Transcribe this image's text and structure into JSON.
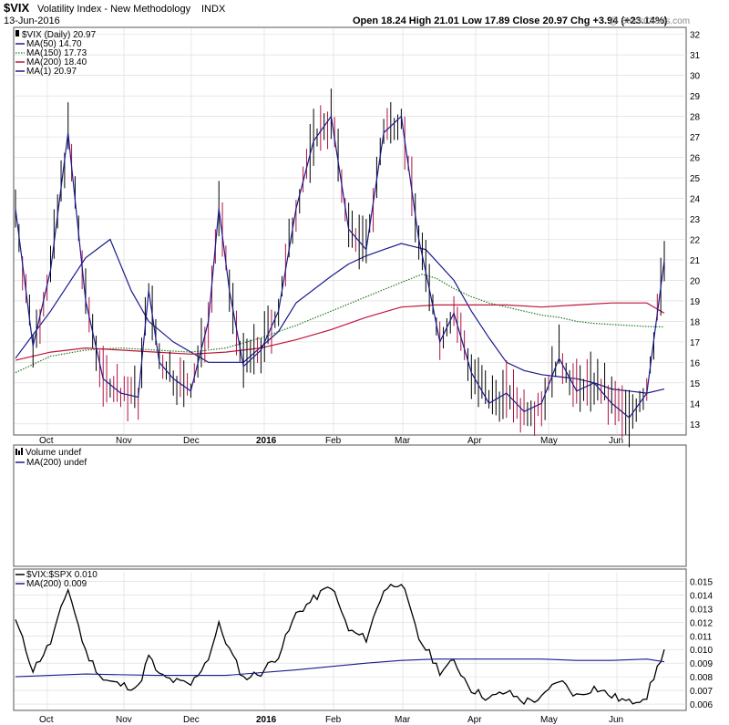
{
  "header": {
    "symbol": "$VIX",
    "name": "Volatility Index - New Methodology",
    "exchange": "INDX",
    "date": "13-Jun-2016",
    "quote": "Open 18.24  High 21.01  Low 17.89  Close 20.97  Chg +3.94 (+23.14%)",
    "watermark": "@ StockCharts.com"
  },
  "panels": {
    "price": {
      "legend": [
        "$VIX (Daily) 20.97",
        "MA(50) 14.70",
        "MA(150) 17.73",
        "MA(200) 18.40",
        "MA(1) 20.97"
      ]
    },
    "volume": {
      "legend": [
        "Volume undef",
        "MA(200) undef"
      ]
    },
    "ratio": {
      "legend": [
        "$VIX:$SPX 0.010",
        "MA(200) 0.009"
      ]
    }
  },
  "colors": {
    "price": "#1a1a8c",
    "ma50": "#1a1a8c",
    "ma150": "#1e7b1e",
    "ma200": "#c0143c",
    "up_bar": "#000000",
    "down_bar": "#b01040",
    "ratio": "#000000",
    "ratio_ma": "#1a1a8c",
    "grid": "#d8d8d8"
  },
  "chart_data": [
    {
      "type": "line",
      "panel": "price",
      "ylim": [
        12.5,
        32.3
      ],
      "yticks": [
        13,
        14,
        15,
        16,
        17,
        18,
        19,
        20,
        21,
        22,
        23,
        24,
        25,
        26,
        27,
        28,
        29,
        30,
        31,
        32
      ],
      "x_labels": [
        "Oct",
        "Nov",
        "Dec",
        "2016",
        "Feb",
        "Mar",
        "Apr",
        "May",
        "Jun"
      ],
      "series": [
        {
          "key": "price",
          "x": [
            0,
            5,
            10,
            15,
            20,
            25,
            30,
            35,
            38,
            41,
            45,
            50,
            55,
            58,
            61,
            65,
            70,
            75,
            80,
            85,
            90,
            95,
            100,
            105,
            110,
            115,
            118,
            121,
            125,
            130,
            135,
            140,
            145,
            150,
            155,
            160,
            165,
            170,
            175,
            180,
            185
          ],
          "values": [
            23.5,
            16.8,
            20.5,
            27.2,
            19.0,
            15.2,
            14.5,
            14.3,
            19.5,
            16.0,
            15.2,
            14.6,
            18.0,
            23.5,
            19.5,
            15.8,
            16.6,
            18.5,
            23.5,
            26.8,
            28.0,
            22.5,
            21.5,
            27.2,
            28.0,
            22.0,
            19.6,
            17.0,
            18.4,
            15.5,
            14.0,
            14.5,
            13.6,
            14.0,
            16.2,
            14.6,
            15.0,
            14.0,
            13.3,
            14.5,
            20.97
          ]
        },
        {
          "key": "ma50",
          "x": [
            0,
            10,
            20,
            27,
            33,
            38,
            45,
            55,
            65,
            75,
            80,
            90,
            95,
            100,
            105,
            110,
            117,
            125,
            130,
            135,
            140,
            145,
            150,
            155,
            160,
            165,
            170,
            175,
            180,
            185
          ],
          "values": [
            16.2,
            18.5,
            21.1,
            22.0,
            19.5,
            18.0,
            17.0,
            16.0,
            16.0,
            17.5,
            18.9,
            20.2,
            20.8,
            21.2,
            21.5,
            21.8,
            21.5,
            20.0,
            18.5,
            17.2,
            16.0,
            15.6,
            15.4,
            15.3,
            15.2,
            15.0,
            14.7,
            14.6,
            14.5,
            14.7
          ]
        },
        {
          "key": "ma150",
          "x": [
            0,
            10,
            20,
            30,
            40,
            50,
            60,
            70,
            80,
            90,
            100,
            110,
            116,
            120,
            125,
            130,
            135,
            140,
            145,
            150,
            155,
            160,
            165,
            170,
            175,
            180,
            185
          ],
          "values": [
            15.5,
            16.3,
            16.6,
            16.7,
            16.6,
            16.5,
            16.7,
            17.2,
            17.8,
            18.5,
            19.2,
            19.9,
            20.3,
            20.1,
            19.6,
            19.2,
            18.9,
            18.7,
            18.5,
            18.3,
            18.2,
            18.0,
            17.9,
            17.85,
            17.8,
            17.75,
            17.73
          ]
        },
        {
          "key": "ma200",
          "x": [
            0,
            10,
            20,
            30,
            40,
            50,
            60,
            70,
            80,
            90,
            100,
            110,
            120,
            130,
            140,
            150,
            160,
            170,
            175,
            180,
            185
          ],
          "values": [
            16.1,
            16.5,
            16.7,
            16.6,
            16.5,
            16.4,
            16.5,
            16.7,
            17.1,
            17.6,
            18.2,
            18.7,
            18.8,
            18.8,
            18.8,
            18.7,
            18.8,
            18.9,
            18.9,
            18.9,
            18.4
          ]
        }
      ]
    },
    {
      "type": "line",
      "panel": "ratio",
      "ylim": [
        0.0056,
        0.0157
      ],
      "yticks": [
        0.006,
        0.007,
        0.008,
        0.009,
        0.01,
        0.011,
        0.012,
        0.013,
        0.014,
        0.015
      ],
      "yticklabels": [
        "0.006",
        "0.007",
        "0.008",
        "0.009",
        "0.010",
        "0.011",
        "0.012",
        "0.013",
        "0.014",
        "0.015"
      ],
      "x_labels": [
        "Oct",
        "Nov",
        "Dec",
        "2016",
        "Feb",
        "Mar",
        "Apr",
        "May",
        "Jun"
      ],
      "series": [
        {
          "key": "ratio",
          "x": [
            0,
            5,
            10,
            15,
            20,
            25,
            30,
            35,
            38,
            41,
            45,
            50,
            55,
            58,
            61,
            65,
            70,
            75,
            80,
            85,
            90,
            95,
            100,
            105,
            110,
            115,
            118,
            121,
            125,
            130,
            135,
            140,
            145,
            150,
            155,
            160,
            165,
            170,
            175,
            180,
            185
          ],
          "values": [
            0.0122,
            0.0085,
            0.0105,
            0.0145,
            0.0098,
            0.0078,
            0.0074,
            0.0072,
            0.0095,
            0.0081,
            0.0077,
            0.0074,
            0.0094,
            0.0118,
            0.01,
            0.0079,
            0.0083,
            0.0096,
            0.0126,
            0.0137,
            0.0147,
            0.0114,
            0.0108,
            0.0144,
            0.015,
            0.0108,
            0.0097,
            0.0084,
            0.0091,
            0.0071,
            0.0064,
            0.0069,
            0.0062,
            0.0064,
            0.0078,
            0.0066,
            0.0072,
            0.0066,
            0.0061,
            0.0066,
            0.01
          ]
        },
        {
          "key": "ratio_ma",
          "x": [
            0,
            20,
            40,
            60,
            80,
            100,
            110,
            120,
            130,
            140,
            150,
            160,
            170,
            180,
            185
          ],
          "values": [
            0.008,
            0.0082,
            0.0081,
            0.0081,
            0.0085,
            0.009,
            0.0092,
            0.0093,
            0.0093,
            0.0093,
            0.0093,
            0.0092,
            0.0092,
            0.0093,
            0.0091
          ]
        }
      ]
    }
  ]
}
